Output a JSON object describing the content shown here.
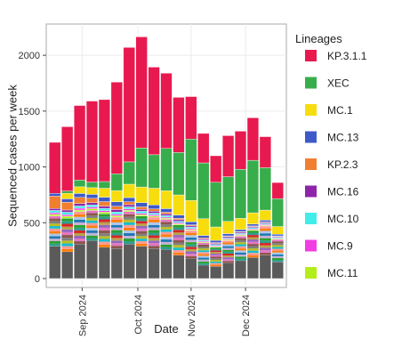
{
  "chart_data": {
    "type": "bar",
    "stacked": true,
    "xlabel": "Date",
    "ylabel": "Sequenced cases per week",
    "ylim": [
      -80,
      2280
    ],
    "y_ticks": [
      0,
      500,
      1000,
      1500,
      2000
    ],
    "x_ticks": [
      "Sep 2024",
      "Oct 2024",
      "Nov 2024",
      "Dec 2024"
    ],
    "x_tick_positions": [
      2.2,
      6.7,
      11.0,
      15.4
    ],
    "grid": true,
    "legend": {
      "title": "Lineages",
      "placement": "right"
    },
    "categories": [
      "2024-08-04",
      "2024-08-11",
      "2024-08-18",
      "2024-08-25",
      "2024-09-01",
      "2024-09-08",
      "2024-09-15",
      "2024-09-22",
      "2024-09-29",
      "2024-10-06",
      "2024-10-13",
      "2024-10-20",
      "2024-10-27",
      "2024-11-03",
      "2024-11-10",
      "2024-11-17",
      "2024-11-24",
      "2024-12-01",
      "2024-12-08"
    ],
    "other_colors": [
      "#2f9e8f",
      "#b8a44a",
      "#e377c2",
      "#7f7f7f",
      "#17becf",
      "#ff7f0e",
      "#1f77b4",
      "#2ca02c",
      "#d62728",
      "#9467bd",
      "#8c564b",
      "#bcbd22",
      "#ff9896",
      "#aec7e8",
      "#c5b0d5"
    ],
    "series": [
      {
        "name": "",
        "color": "#5a5a5a",
        "values": [
          290,
          240,
          310,
          340,
          280,
          270,
          310,
          290,
          270,
          260,
          210,
          180,
          120,
          110,
          140,
          160,
          190,
          210,
          150
        ]
      },
      {
        "name": "",
        "color": "#mixed",
        "values": [
          270,
          300,
          290,
          270,
          300,
          280,
          290,
          270,
          280,
          270,
          270,
          250,
          200,
          170,
          200,
          220,
          240,
          260,
          200
        ]
      },
      {
        "name": "MC.11",
        "color": "#b3ee1a",
        "values": [
          15,
          18,
          14,
          16,
          15,
          13,
          12,
          12,
          10,
          10,
          10,
          8,
          8,
          7,
          8,
          8,
          8,
          7,
          6
        ]
      },
      {
        "name": "MC.9",
        "color": "#f23ce4",
        "values": [
          15,
          14,
          16,
          15,
          14,
          13,
          12,
          12,
          11,
          10,
          10,
          9,
          8,
          8,
          8,
          7,
          8,
          7,
          6
        ]
      },
      {
        "name": "MC.10",
        "color": "#40ede8",
        "values": [
          20,
          22,
          20,
          18,
          20,
          20,
          18,
          18,
          15,
          14,
          13,
          12,
          10,
          10,
          10,
          10,
          10,
          9,
          8
        ]
      },
      {
        "name": "MC.16",
        "color": "#8e24aa",
        "values": [
          18,
          20,
          22,
          20,
          20,
          22,
          20,
          18,
          18,
          15,
          14,
          12,
          10,
          10,
          10,
          10,
          10,
          9,
          8
        ]
      },
      {
        "name": "KP.2.3",
        "color": "#f17f31",
        "values": [
          110,
          70,
          55,
          40,
          40,
          30,
          25,
          22,
          20,
          15,
          12,
          10,
          8,
          7,
          6,
          6,
          5,
          5,
          4
        ]
      },
      {
        "name": "MC.13",
        "color": "#3e5ac9",
        "values": [
          25,
          30,
          35,
          35,
          40,
          40,
          38,
          38,
          35,
          32,
          30,
          28,
          22,
          20,
          20,
          18,
          18,
          16,
          14
        ]
      },
      {
        "name": "MC.1",
        "color": "#f7dc0e",
        "values": [
          0,
          50,
          60,
          60,
          80,
          100,
          120,
          140,
          150,
          160,
          180,
          190,
          150,
          120,
          110,
          100,
          100,
          90,
          70
        ]
      },
      {
        "name": "XEC",
        "color": "#38ad4b",
        "values": [
          0,
          20,
          60,
          50,
          60,
          150,
          200,
          350,
          300,
          380,
          380,
          550,
          500,
          400,
          400,
          440,
          470,
          380,
          250
        ]
      },
      {
        "name": "KP.3.1.1",
        "color": "#e8194f",
        "values": [
          457,
          576,
          668,
          726,
          734,
          822,
          1025,
          995,
          785,
          674,
          494,
          381,
          264,
          238,
          368,
          341,
          381,
          278,
          144
        ]
      }
    ],
    "legend_items": [
      "KP.3.1.1",
      "XEC",
      "MC.1",
      "MC.13",
      "KP.2.3",
      "MC.16",
      "MC.10",
      "MC.9",
      "MC.11"
    ]
  }
}
